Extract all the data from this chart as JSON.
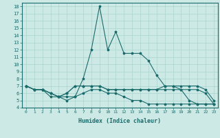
{
  "title": "",
  "xlabel": "Humidex (Indice chaleur)",
  "xlim": [
    -0.5,
    23.5
  ],
  "ylim": [
    4,
    18.5
  ],
  "xticks": [
    0,
    1,
    2,
    3,
    4,
    5,
    6,
    7,
    8,
    9,
    10,
    11,
    12,
    13,
    14,
    15,
    16,
    17,
    18,
    19,
    20,
    21,
    22,
    23
  ],
  "yticks": [
    4,
    5,
    6,
    7,
    8,
    9,
    10,
    11,
    12,
    13,
    14,
    15,
    16,
    17,
    18
  ],
  "bg_color": "#cce9e5",
  "line_color": "#1a6b6b",
  "grid_color": "#aad4cf",
  "lines": [
    {
      "x": [
        0,
        1,
        2,
        3,
        4,
        5,
        6,
        7,
        8,
        9,
        10,
        11,
        12,
        13,
        14,
        15,
        16,
        17,
        18,
        19,
        20,
        21,
        22,
        23
      ],
      "y": [
        7,
        6.5,
        6.5,
        5.5,
        5.5,
        5,
        5.5,
        8,
        12,
        18,
        12,
        14.5,
        11.5,
        11.5,
        11.5,
        10.5,
        8.5,
        7,
        7,
        6.5,
        5,
        4.5,
        4.5,
        4.5
      ]
    },
    {
      "x": [
        0,
        1,
        2,
        3,
        4,
        5,
        6,
        7,
        8,
        9,
        10,
        11,
        12,
        13,
        14,
        15,
        16,
        17,
        18,
        19,
        20,
        21,
        22,
        23
      ],
      "y": [
        7,
        6.5,
        6.5,
        6,
        5.5,
        6,
        7,
        7,
        7,
        7,
        6.5,
        6.5,
        6.5,
        6.5,
        6.5,
        6.5,
        6.5,
        7,
        7,
        7,
        7,
        7,
        6.5,
        5
      ]
    },
    {
      "x": [
        0,
        1,
        2,
        3,
        4,
        5,
        6,
        7,
        8,
        9,
        10,
        11,
        12,
        13,
        14,
        15,
        16,
        17,
        18,
        19,
        20,
        21,
        22,
        23
      ],
      "y": [
        7,
        6.5,
        6.5,
        6,
        5.5,
        6,
        7,
        7,
        7,
        7,
        6.5,
        6.5,
        6.5,
        6.5,
        6.5,
        6.5,
        6.5,
        6.5,
        6.5,
        6.5,
        6.5,
        6.5,
        6,
        4.5
      ]
    },
    {
      "x": [
        0,
        1,
        2,
        3,
        4,
        5,
        6,
        7,
        8,
        9,
        10,
        11,
        12,
        13,
        14,
        15,
        16,
        17,
        18,
        19,
        20,
        21,
        22,
        23
      ],
      "y": [
        7,
        6.5,
        6.5,
        6,
        5.5,
        5.5,
        5.5,
        6,
        6.5,
        6.5,
        6,
        6,
        5.5,
        5,
        5,
        4.5,
        4.5,
        4.5,
        4.5,
        4.5,
        4.5,
        4.5,
        4.5,
        4.5
      ]
    }
  ]
}
